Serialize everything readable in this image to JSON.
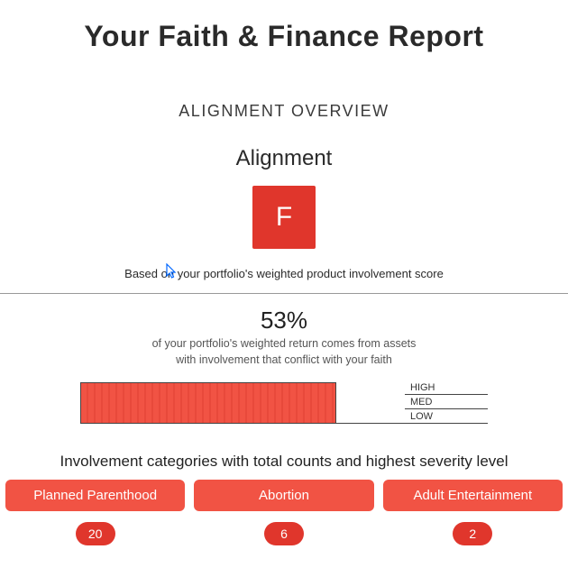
{
  "colors": {
    "accent": "#e0362c",
    "bar_fill": "#f15344",
    "bar_fill_alt": "#e8493b",
    "badge": "#e0362c",
    "card": "#f15344"
  },
  "title": "Your Faith & Finance Report",
  "overview": {
    "section_label": "ALIGNMENT OVERVIEW",
    "heading": "Alignment",
    "grade": "F",
    "caption": "Based on your portfolio's weighted product involvement score"
  },
  "percent": {
    "value": "53%",
    "caption_line1": "of your portfolio's weighted return comes from assets",
    "caption_line2": "with involvement that conflict with your faith"
  },
  "bar": {
    "fill_percent": 79,
    "scale": {
      "high": "HIGH",
      "med": "MED",
      "low": "LOW"
    }
  },
  "categories": {
    "heading": "Involvement categories with total counts and highest severity level",
    "items": [
      {
        "label": "Planned Parenthood",
        "count": "20"
      },
      {
        "label": "Abortion",
        "count": "6"
      },
      {
        "label": "Adult Entertainment",
        "count": "2"
      }
    ]
  }
}
